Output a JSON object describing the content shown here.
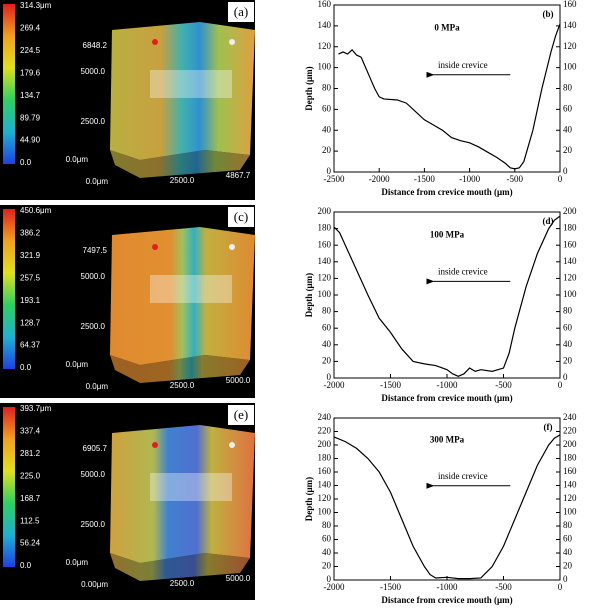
{
  "images": [
    {
      "label": "(a)",
      "colorbar": [
        "314.3μm",
        "269.4",
        "224.5",
        "179.6",
        "134.7",
        "89.79",
        "44.90",
        "0.0"
      ],
      "axis_labels": [
        "6848.2",
        "5000.0",
        "2500.0",
        "0.0μm",
        "0.0μm",
        "2500.0",
        "4867.7"
      ]
    },
    {
      "label": "(c)",
      "colorbar": [
        "450.6μm",
        "386.2",
        "321.9",
        "257.5",
        "193.1",
        "128.7",
        "64.37",
        "0.0"
      ],
      "axis_labels": [
        "7497.5",
        "5000.0",
        "2500.0",
        "0.0μm",
        "0.0μm",
        "2500.0",
        "5000.0"
      ]
    },
    {
      "label": "(e)",
      "colorbar": [
        "393.7μm",
        "337.4",
        "281.2",
        "225.0",
        "168.7",
        "112.5",
        "56.24",
        "0.0"
      ],
      "axis_labels": [
        "6905.7",
        "5000.0",
        "2500.0",
        "0.0μm",
        "0.00μm",
        "2500.0",
        "5000.0"
      ]
    }
  ],
  "chart_data": [
    {
      "type": "line",
      "title": "0 MPa",
      "panel_label": "(b)",
      "annotation": "inside crevice",
      "x_label": "Distance from crevice mouth (μm)",
      "y_label": "Depth (μm)",
      "color": "#000000",
      "x": [
        -2450,
        -2400,
        -2350,
        -2300,
        -2250,
        -2200,
        -2150,
        -2100,
        -2050,
        -2000,
        -1950,
        -1800,
        -1700,
        -1600,
        -1500,
        -1400,
        -1300,
        -1200,
        -1100,
        -1000,
        -900,
        -800,
        -700,
        -600,
        -550,
        -500,
        -450,
        -400,
        -300,
        -200,
        -100,
        -50,
        0
      ],
      "values": [
        113,
        115,
        113,
        117,
        112,
        110,
        100,
        90,
        80,
        72,
        70,
        69,
        66,
        58,
        50,
        45,
        40,
        33,
        30,
        28,
        24,
        19,
        14,
        8,
        4,
        3,
        4,
        10,
        40,
        80,
        115,
        130,
        142
      ],
      "xlim": [
        -2500,
        0
      ],
      "xticks": [
        -2500,
        -2000,
        -1500,
        -1000,
        -500,
        0
      ],
      "ylim": [
        0,
        160
      ],
      "yticks": [
        0,
        20,
        40,
        60,
        80,
        100,
        120,
        140,
        160
      ],
      "y2lim": [
        0,
        160
      ],
      "y2ticks": [
        0,
        20,
        40,
        60,
        80,
        100,
        120,
        140,
        160
      ]
    },
    {
      "type": "line",
      "title": "100 MPa",
      "panel_label": "(d)",
      "annotation": "inside crevice",
      "x_label": "Distance from crevice mouth (μm)",
      "y_label": "Depth (μm)",
      "color": "#000000",
      "x": [
        -2000,
        -1950,
        -1900,
        -1800,
        -1700,
        -1600,
        -1500,
        -1400,
        -1300,
        -1200,
        -1100,
        -1000,
        -950,
        -900,
        -850,
        -800,
        -750,
        -700,
        -600,
        -500,
        -450,
        -400,
        -300,
        -200,
        -100,
        -50,
        0
      ],
      "values": [
        182,
        175,
        160,
        130,
        100,
        72,
        55,
        35,
        20,
        17,
        15,
        10,
        5,
        2,
        5,
        12,
        8,
        10,
        8,
        12,
        30,
        60,
        110,
        150,
        180,
        190,
        195
      ],
      "xlim": [
        -2000,
        0
      ],
      "xticks": [
        -2000,
        -1500,
        -1000,
        -500,
        0
      ],
      "ylim": [
        0,
        200
      ],
      "yticks": [
        0,
        20,
        40,
        60,
        80,
        100,
        120,
        140,
        160,
        180,
        200
      ],
      "y2lim": [
        0,
        200
      ],
      "y2ticks": [
        0,
        20,
        40,
        60,
        80,
        100,
        120,
        140,
        160,
        180,
        200
      ]
    },
    {
      "type": "line",
      "title": "300 MPa",
      "panel_label": "(f)",
      "annotation": "inside crevice",
      "x_label": "Distance from crevice mouth (μm)",
      "y_label": "Depth (μm)",
      "color": "#000000",
      "x": [
        -2000,
        -1900,
        -1800,
        -1700,
        -1600,
        -1500,
        -1400,
        -1300,
        -1200,
        -1150,
        -1100,
        -1000,
        -900,
        -800,
        -700,
        -600,
        -500,
        -400,
        -300,
        -200,
        -100,
        -50,
        0
      ],
      "values": [
        212,
        205,
        195,
        180,
        160,
        130,
        90,
        50,
        20,
        8,
        3,
        4,
        2,
        2,
        3,
        20,
        50,
        90,
        130,
        170,
        200,
        210,
        215
      ],
      "xlim": [
        -2000,
        0
      ],
      "xticks": [
        -2000,
        -1500,
        -1000,
        -500,
        0
      ],
      "ylim": [
        0,
        240
      ],
      "yticks": [
        0,
        20,
        40,
        60,
        80,
        100,
        120,
        140,
        160,
        180,
        200,
        220,
        240
      ],
      "y2lim": [
        0,
        240
      ],
      "y2ticks": [
        0,
        20,
        40,
        60,
        80,
        100,
        120,
        140,
        160,
        180,
        200,
        220,
        240
      ]
    }
  ]
}
